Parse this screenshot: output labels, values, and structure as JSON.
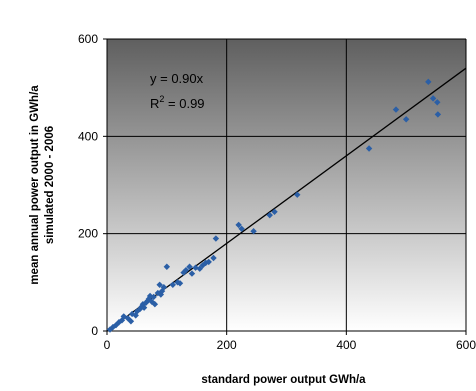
{
  "chart_data": {
    "type": "scatter",
    "xlabel": "standard power output GWh/a",
    "ylabel_lines": [
      "mean annual power output in GWh/a",
      "simulated 2000 - 2006"
    ],
    "xlim": [
      0,
      600
    ],
    "ylim": [
      0,
      600
    ],
    "xticks": [
      "0",
      "200",
      "400",
      "600"
    ],
    "yticks": [
      "0",
      "200",
      "400",
      "600"
    ],
    "grid": true,
    "legend": "none",
    "marker_color": "#2b5fa6",
    "trendline_color": "#000000",
    "background_gradient": [
      "#5f5f5f",
      "#ffffff"
    ],
    "annotation": {
      "equation": "y = 0.90x",
      "r2_prefix": "R",
      "r2_sup": "2",
      "r2_suffix": " = 0.99"
    },
    "trendline": {
      "slope": 0.9,
      "x_range": [
        0,
        600
      ]
    },
    "points": [
      [
        5,
        3
      ],
      [
        10,
        8
      ],
      [
        15,
        12
      ],
      [
        20,
        18
      ],
      [
        25,
        22
      ],
      [
        28,
        30
      ],
      [
        35,
        26
      ],
      [
        40,
        20
      ],
      [
        42,
        35
      ],
      [
        48,
        32
      ],
      [
        50,
        40
      ],
      [
        55,
        45
      ],
      [
        58,
        50
      ],
      [
        60,
        55
      ],
      [
        62,
        48
      ],
      [
        65,
        58
      ],
      [
        68,
        62
      ],
      [
        70,
        66
      ],
      [
        72,
        72
      ],
      [
        75,
        60
      ],
      [
        78,
        70
      ],
      [
        80,
        55
      ],
      [
        85,
        78
      ],
      [
        88,
        95
      ],
      [
        90,
        75
      ],
      [
        92,
        82
      ],
      [
        95,
        90
      ],
      [
        100,
        132
      ],
      [
        110,
        95
      ],
      [
        118,
        100
      ],
      [
        122,
        98
      ],
      [
        128,
        120
      ],
      [
        132,
        125
      ],
      [
        138,
        132
      ],
      [
        142,
        118
      ],
      [
        148,
        130
      ],
      [
        155,
        128
      ],
      [
        160,
        135
      ],
      [
        165,
        140
      ],
      [
        170,
        142
      ],
      [
        178,
        150
      ],
      [
        182,
        190
      ],
      [
        220,
        218
      ],
      [
        225,
        210
      ],
      [
        245,
        205
      ],
      [
        272,
        238
      ],
      [
        280,
        245
      ],
      [
        318,
        280
      ],
      [
        438,
        375
      ],
      [
        483,
        455
      ],
      [
        500,
        435
      ],
      [
        537,
        512
      ],
      [
        545,
        478
      ],
      [
        552,
        470
      ],
      [
        553,
        445
      ]
    ]
  }
}
